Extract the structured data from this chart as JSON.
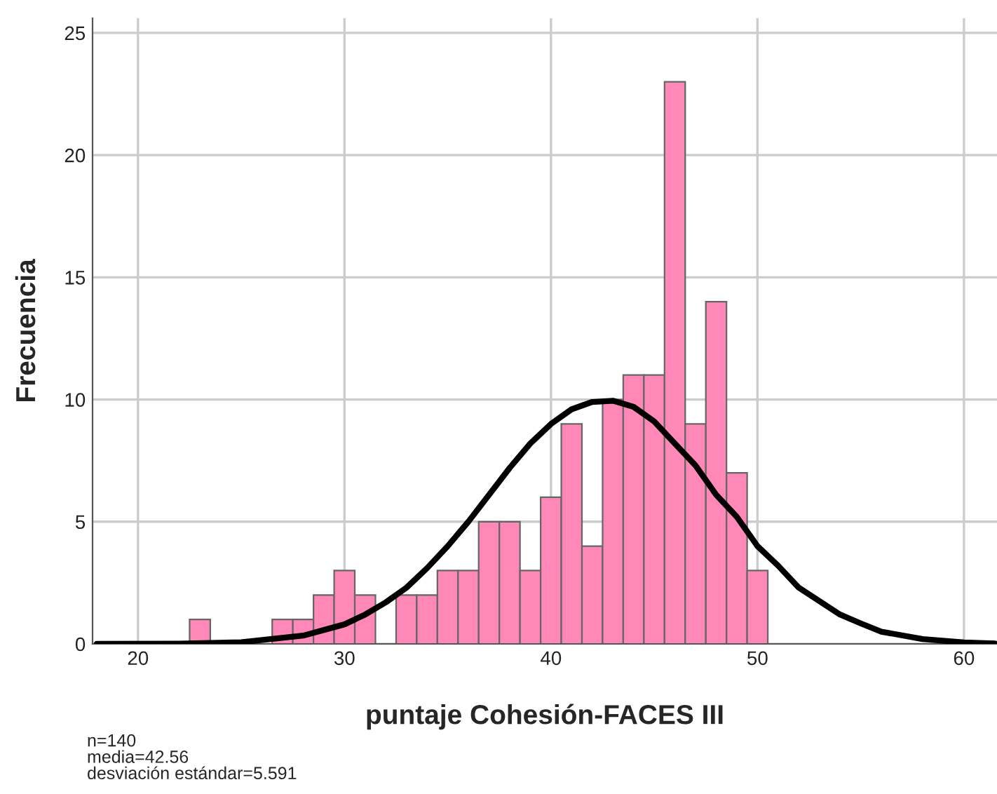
{
  "chart_data": {
    "type": "histogram",
    "xlabel": "puntaje Cohesión-FACES III",
    "ylabel": "Frecuencia",
    "bins": [
      22.5,
      23.5,
      24.5,
      25.5,
      26.5,
      27.5,
      28.5,
      29.5,
      30.5,
      31.5,
      32.5,
      33.5,
      34.5,
      35.5,
      36.5,
      37.5,
      38.5,
      39.5,
      40.5,
      41.5,
      42.5,
      43.5,
      44.5,
      45.5,
      46.5,
      47.5,
      48.5,
      49.5,
      50.5
    ],
    "values": [
      1,
      0,
      0,
      0,
      1,
      1,
      2,
      3,
      2,
      0,
      2,
      2,
      3,
      3,
      5,
      5,
      3,
      6,
      9,
      4,
      10,
      11,
      11,
      23,
      9,
      14,
      7,
      3
    ],
    "color": "#ff88b8",
    "series": [
      {
        "type": "line",
        "color": "#000000",
        "x": [
          18,
          22,
          25,
          28,
          30,
          31,
          32,
          33,
          34,
          35,
          36,
          37,
          38,
          39,
          40,
          41,
          42,
          43,
          44,
          45,
          46,
          47,
          48,
          49,
          50,
          51,
          52,
          53,
          54,
          55,
          56,
          58,
          60,
          61.5
        ],
        "values": [
          0.0,
          0.01,
          0.07,
          0.34,
          0.8,
          1.2,
          1.7,
          2.3,
          3.1,
          4.0,
          5.0,
          6.1,
          7.2,
          8.2,
          9.0,
          9.6,
          9.9,
          9.95,
          9.7,
          9.1,
          8.2,
          7.3,
          6.1,
          5.2,
          4.0,
          3.2,
          2.3,
          1.75,
          1.2,
          0.84,
          0.5,
          0.2,
          0.06,
          0.02
        ]
      }
    ],
    "xlim": [
      17.8,
      61.6
    ],
    "ylim": [
      0,
      25.6
    ],
    "xticks": [
      20,
      30,
      40,
      50,
      60
    ],
    "yticks": [
      0,
      5,
      10,
      15,
      20,
      25
    ],
    "grid": true,
    "legend": false,
    "annotations": [
      "n=140\nmedia=42.56\ndesviación estándar=5.591"
    ]
  }
}
